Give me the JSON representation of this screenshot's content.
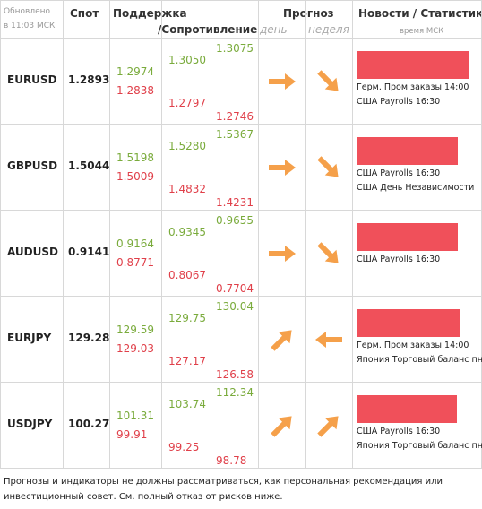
{
  "header": {
    "updated": [
      "Обновлено",
      "в 11:03 МСК"
    ],
    "spot": "Спот",
    "support": "Поддержка",
    "resistance": "/Сопротивление",
    "forecast": "Прогноз",
    "day": "день",
    "week": "неделя",
    "news": "Новости / Статистика",
    "news_time": "время МСК"
  },
  "rows": [
    {
      "pair": "EURUSD",
      "spot": "1.2893",
      "levels": [
        [
          "1.2974",
          "1.2838"
        ],
        [
          "1.3050",
          "1.2797"
        ],
        [
          "1.3075",
          "1.2746"
        ]
      ],
      "news": [
        "Герм. Пром заказы 14:00",
        "США Payrolls 16:30"
      ]
    },
    {
      "pair": "GBPUSD",
      "spot": "1.5044",
      "levels": [
        [
          "1.5198",
          "1.5009"
        ],
        [
          "1.5280",
          "1.4832"
        ],
        [
          "1.5367",
          "1.4231"
        ]
      ],
      "news": [
        "США Payrolls 16:30",
        "США День Независимости"
      ]
    },
    {
      "pair": "AUDUSD",
      "spot": "0.9141",
      "levels": [
        [
          "0.9164",
          "0.8771"
        ],
        [
          "0.9345",
          "0.8067"
        ],
        [
          "0.9655",
          "0.7704"
        ]
      ],
      "news": [
        "США Payrolls 16:30"
      ]
    },
    {
      "pair": "EURJPY",
      "spot": "129.28",
      "levels": [
        [
          "129.59",
          "129.03"
        ],
        [
          "129.75",
          "127.17"
        ],
        [
          "130.04",
          "126.58"
        ]
      ],
      "news": [
        "Герм. Пром заказы 14:00",
        "Япония Торговый баланс пн."
      ]
    },
    {
      "pair": "USDJPY",
      "spot": "100.27",
      "levels": [
        [
          "101.31",
          "99.91"
        ],
        [
          "103.74",
          "99.25"
        ],
        [
          "112.34",
          "98.78"
        ]
      ],
      "news": [
        "США Payrolls 16:30",
        "Япония Торговый баланс пн."
      ]
    }
  ],
  "footer": [
    "Прогнозы и индикаторы не должны рассматриваться, как персональная рекомендация или",
    "инвестиционный совет. См. полный отказ от рисков ниже."
  ]
}
